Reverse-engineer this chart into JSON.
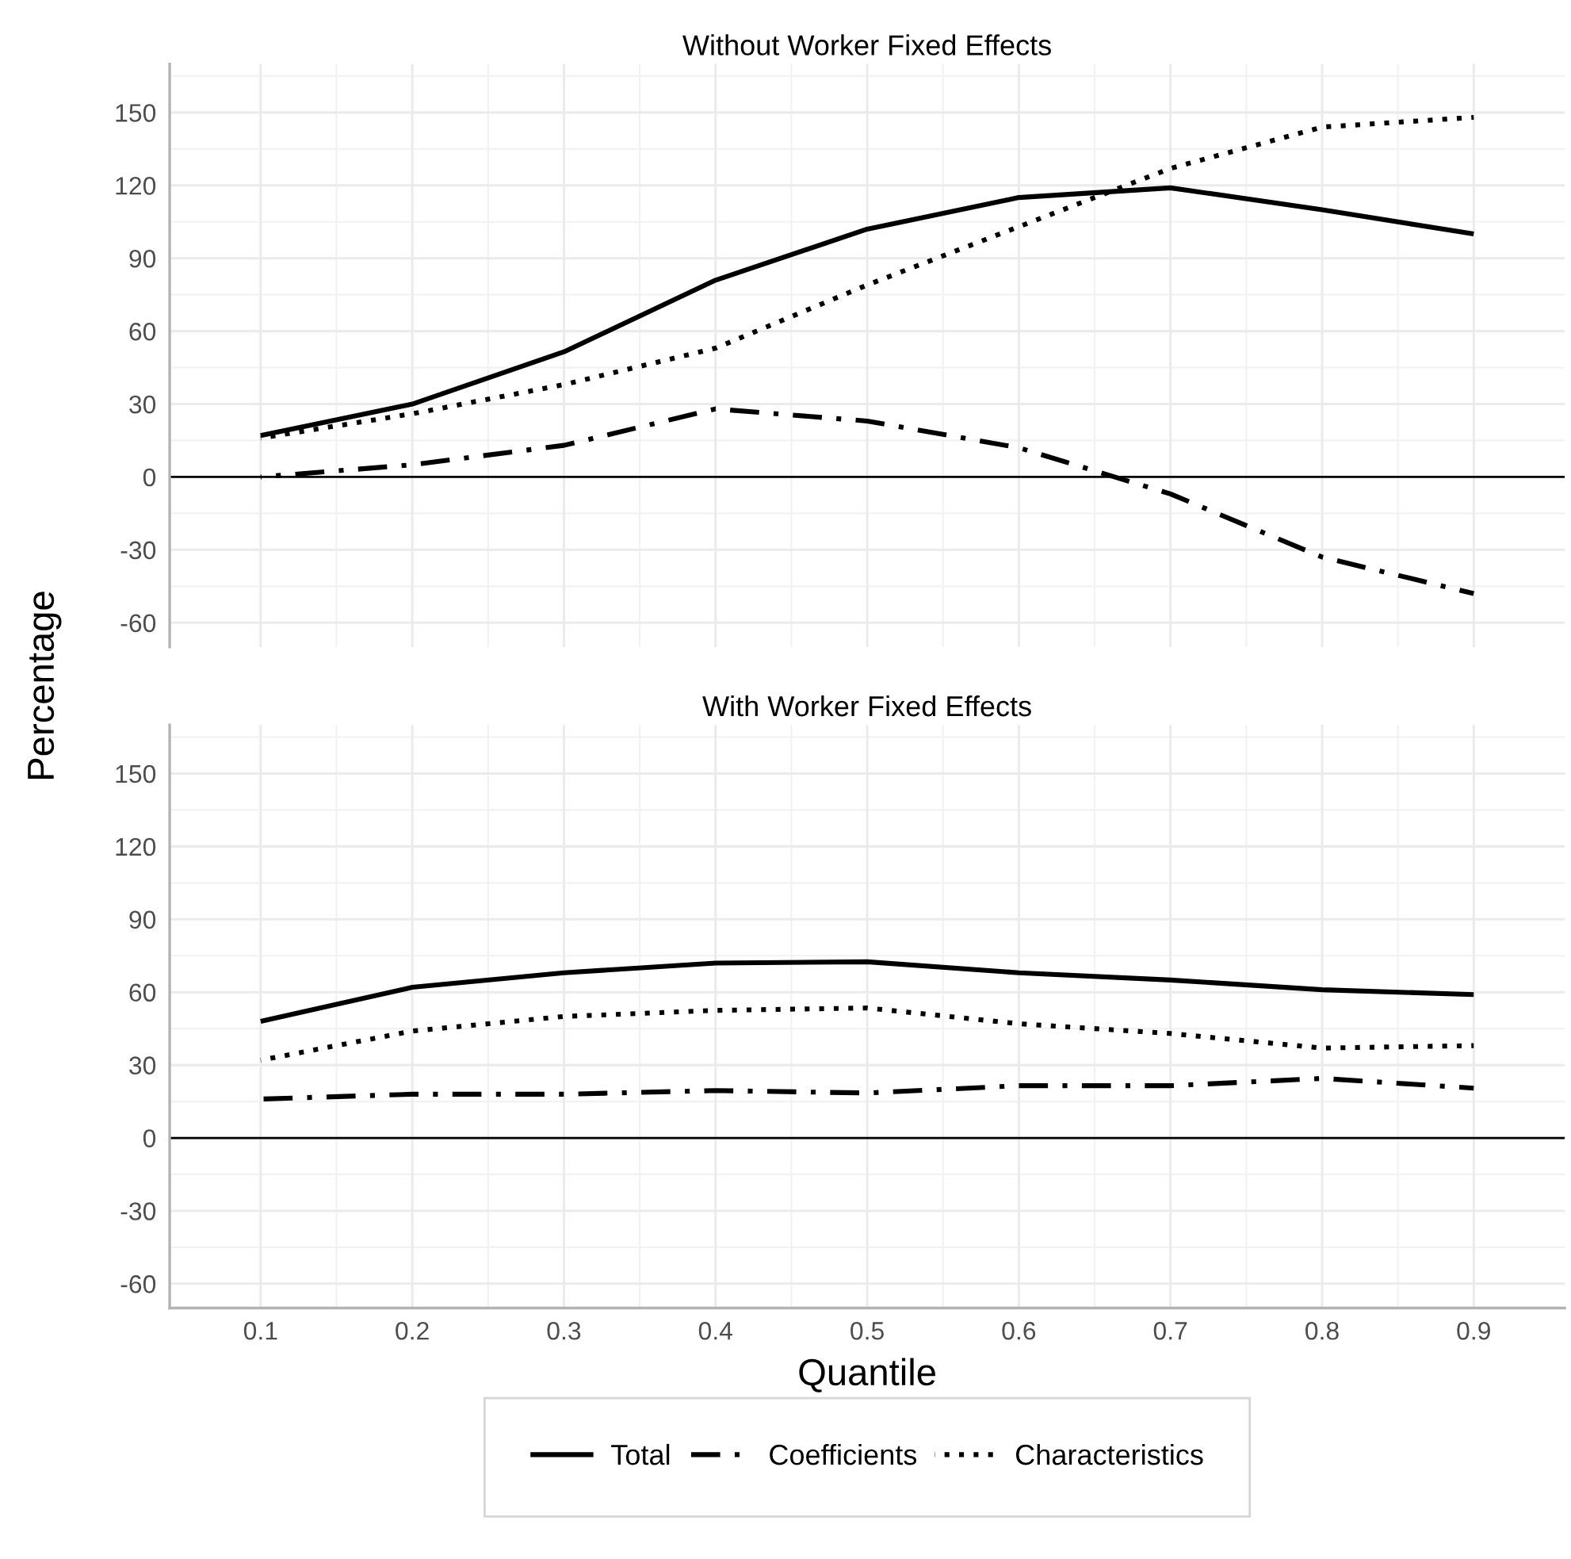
{
  "chart_data": [
    {
      "type": "line",
      "title": "Without Worker Fixed Effects",
      "ylabel": "Percentage",
      "x": [
        0.1,
        0.2,
        0.3,
        0.4,
        0.5,
        0.6,
        0.7,
        0.8,
        0.9
      ],
      "xlim": [
        0.04,
        0.96
      ],
      "xticks": [
        0.1,
        0.2,
        0.3,
        0.4,
        0.5,
        0.6,
        0.7,
        0.8,
        0.9
      ],
      "ylim": [
        -70,
        170
      ],
      "yticks": [
        -60,
        -30,
        0,
        30,
        60,
        90,
        120,
        150
      ],
      "grid": true,
      "tick_labels": "y",
      "ref_lines": [
        {
          "axis": "y",
          "value": 0,
          "color": "#000000"
        }
      ],
      "series": [
        {
          "color": "#000000",
          "line_style": "solid",
          "values": [
            17,
            30,
            51.5,
            81,
            102,
            115,
            119,
            110,
            100
          ]
        },
        {
          "color": "#000000",
          "line_style": "dashdot",
          "values": [
            0,
            5,
            13,
            28,
            23,
            12,
            -7,
            -33,
            -48
          ]
        },
        {
          "color": "#000000",
          "line_style": "dotted",
          "values": [
            16,
            26,
            38,
            53,
            79,
            103,
            127,
            144,
            148
          ]
        }
      ]
    },
    {
      "type": "line",
      "title": "With Worker Fixed Effects",
      "xlabel": "Quantile",
      "x": [
        0.1,
        0.2,
        0.3,
        0.4,
        0.5,
        0.6,
        0.7,
        0.8,
        0.9
      ],
      "xlim": [
        0.04,
        0.96
      ],
      "xticks": [
        0.1,
        0.2,
        0.3,
        0.4,
        0.5,
        0.6,
        0.7,
        0.8,
        0.9
      ],
      "ylim": [
        -70,
        170
      ],
      "yticks": [
        -60,
        -30,
        0,
        30,
        60,
        90,
        120,
        150
      ],
      "grid": true,
      "legend": "bottom",
      "ref_lines": [
        {
          "axis": "y",
          "value": 0,
          "color": "#000000"
        }
      ],
      "series": [
        {
          "name": "Total",
          "color": "#000000",
          "line_style": "solid",
          "values": [
            48,
            62,
            68,
            72,
            72.5,
            68,
            65,
            61,
            59
          ]
        },
        {
          "name": "Coefficients",
          "color": "#000000",
          "line_style": "dashdot",
          "values": [
            16,
            18,
            18,
            19.5,
            18.5,
            21.5,
            21.5,
            24.5,
            20.5
          ]
        },
        {
          "name": "Characteristics",
          "color": "#000000",
          "line_style": "dotted",
          "values": [
            32,
            44,
            50,
            52.5,
            53.5,
            47,
            43,
            37,
            38
          ]
        }
      ]
    }
  ]
}
